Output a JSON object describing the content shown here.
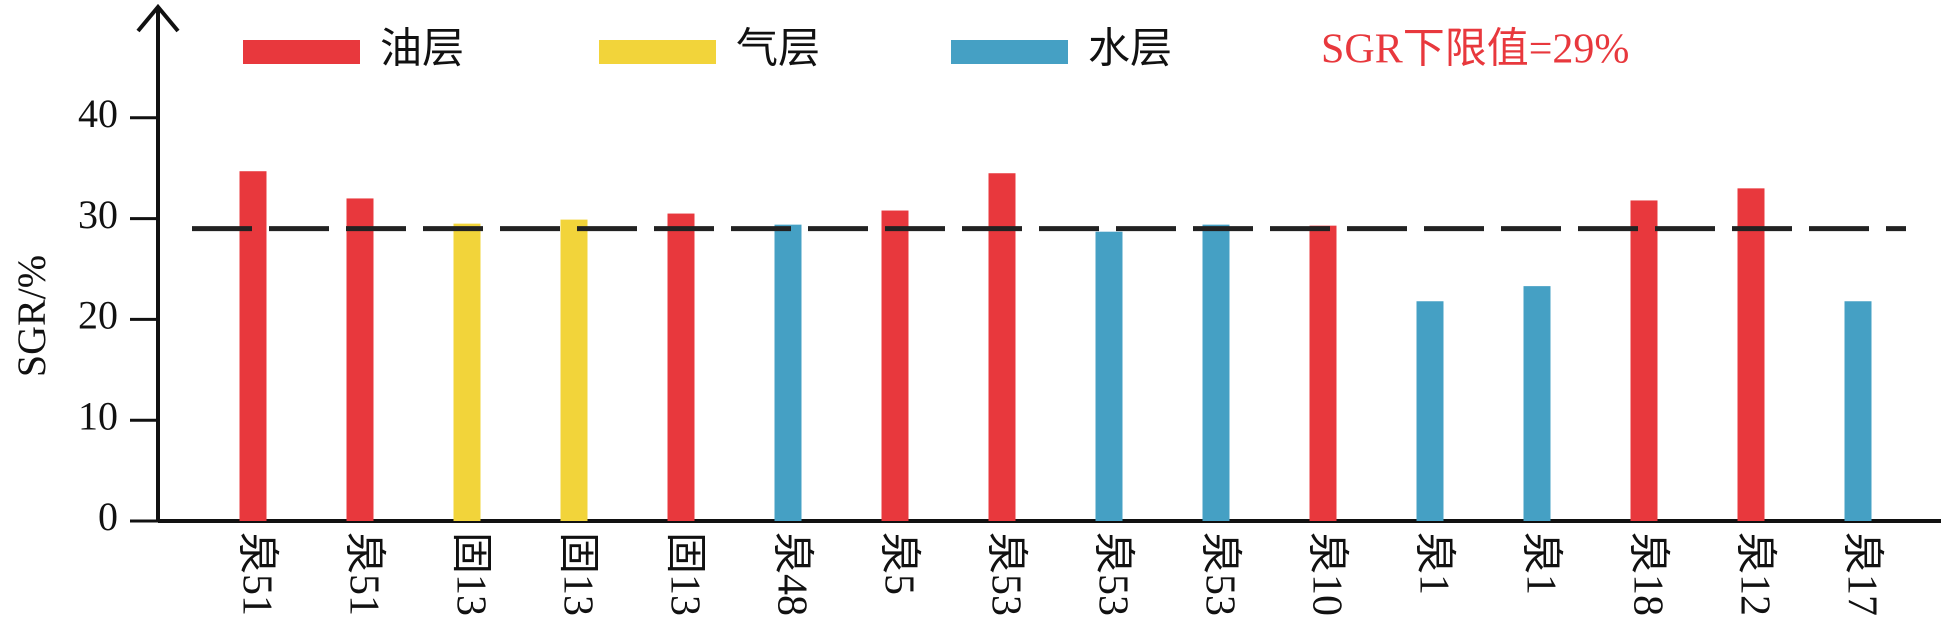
{
  "chart_data": {
    "type": "bar",
    "y_label": "SGR/%",
    "categories": [
      "泉51",
      "泉51",
      "固13",
      "固13",
      "固13",
      "泉48",
      "泉5",
      "泉53",
      "泉53",
      "泉53",
      "泉10",
      "泉1",
      "泉1",
      "泉18",
      "泉12",
      "泉17"
    ],
    "series": [
      {
        "name": "油层",
        "color": "#e8383d",
        "values": [
          34.7,
          32.0,
          null,
          null,
          30.5,
          null,
          30.8,
          34.5,
          null,
          null,
          29.3,
          null,
          null,
          31.8,
          33.0,
          null
        ]
      },
      {
        "name": "气层",
        "color": "#f2d43a",
        "values": [
          null,
          null,
          29.5,
          29.9,
          null,
          null,
          null,
          null,
          null,
          null,
          null,
          null,
          null,
          null,
          null,
          null
        ]
      },
      {
        "name": "水层",
        "color": "#45a0c4",
        "values": [
          null,
          null,
          null,
          null,
          null,
          29.4,
          null,
          null,
          28.7,
          29.4,
          null,
          21.8,
          23.3,
          null,
          null,
          21.8
        ]
      }
    ],
    "threshold": 29,
    "threshold_label": "SGR下限值=29%",
    "threshold_color": "#e8383d",
    "ylim": [
      0,
      50
    ],
    "yticks": [
      0,
      10,
      20,
      30,
      40
    ],
    "grid": false
  }
}
